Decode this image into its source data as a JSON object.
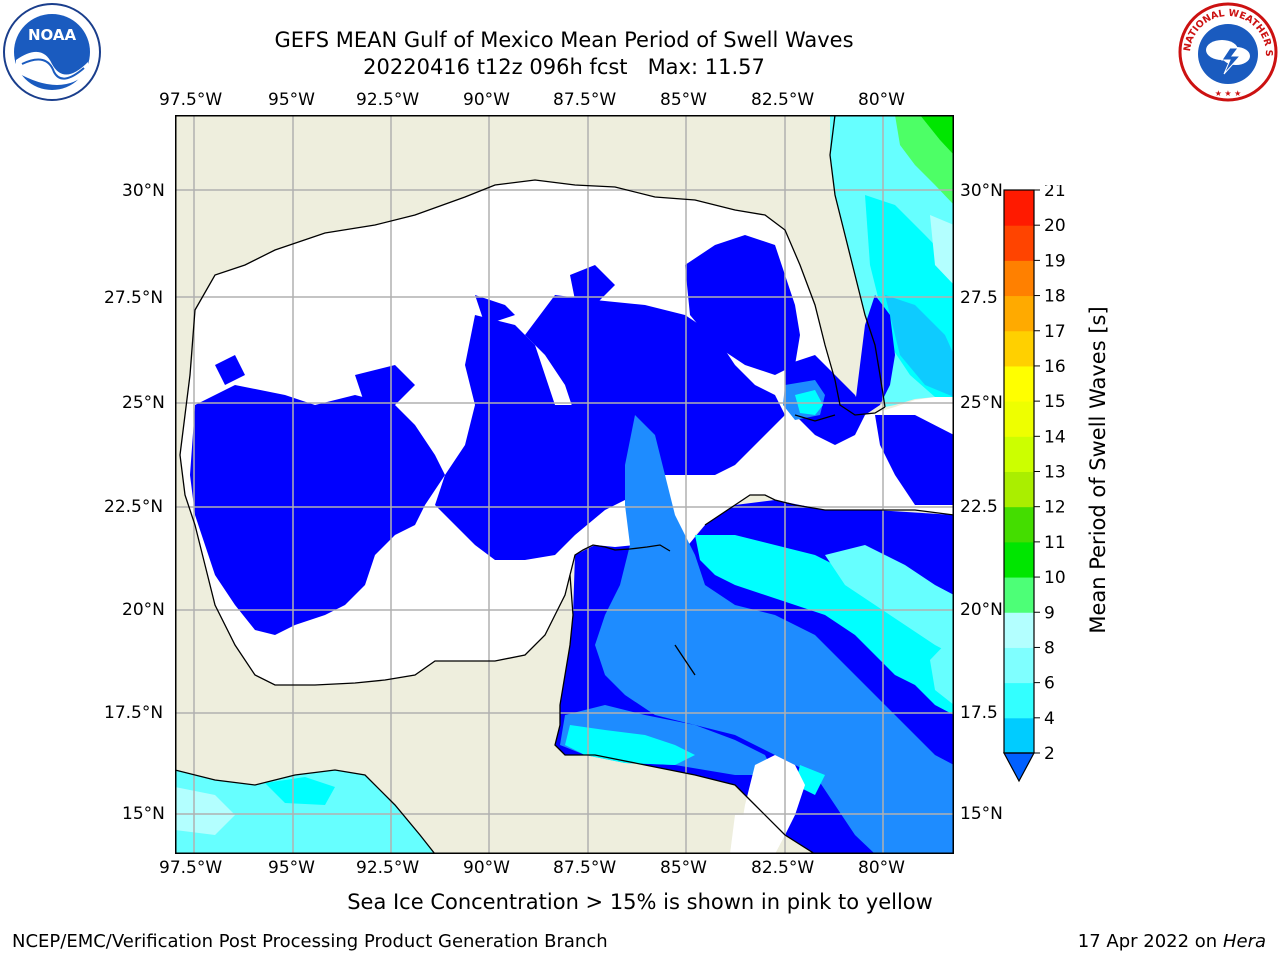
{
  "header": {
    "title_line1": "GEFS MEAN Gulf of Mexico Mean Period of Swell Waves",
    "title_line2": "20220416 t12z 096h fcst   Max: 11.57"
  },
  "logos": {
    "left": {
      "icon": "noaa-logo-icon",
      "text": "NOAA"
    },
    "right": {
      "icon": "national-weather-service-logo-icon",
      "text": "NATIONAL WEATHER SERVICE"
    }
  },
  "map": {
    "lon_labels": [
      "97.5°W",
      "95°W",
      "92.5°W",
      "90°W",
      "87.5°W",
      "85°W",
      "82.5°W",
      "80°W"
    ],
    "lat_labels_left": [
      "30°N",
      "27.5°N",
      "25°N",
      "22.5°N",
      "20°N",
      "17.5°N",
      "15°N"
    ],
    "lat_labels_right": [
      "30°N",
      "27.5",
      "25°N",
      "22.5",
      "20°N",
      "17.5",
      "15°N"
    ],
    "colors": {
      "land": "#eeeedd",
      "no_data": "#ffffff",
      "band_2_4": "#0000ff",
      "band_4_6": "#1e8cff",
      "band_6_8": "#00ffff",
      "band_8_9": "#66ffff",
      "band_9_10": "#b3ffff",
      "band_10_11": "#4dff66",
      "band_11_12": "#00e600",
      "grid": "#b0b0b0",
      "coast": "#000000"
    }
  },
  "colorbar": {
    "label": "Mean Period of Swell Waves [s]",
    "tick_labels": [
      "2",
      "4",
      "6",
      "8",
      "9",
      "10",
      "11",
      "12",
      "13",
      "14",
      "15",
      "16",
      "17",
      "18",
      "19",
      "20",
      "21"
    ],
    "colors": [
      "#0060ff",
      "#00ccff",
      "#33ffff",
      "#7fffff",
      "#b3ffff",
      "#4dff77",
      "#00e600",
      "#44dd00",
      "#aaee00",
      "#ccff00",
      "#eeff00",
      "#ffff00",
      "#ffd000",
      "#ffaa00",
      "#ff8000",
      "#ff4400",
      "#ff1a00",
      "#ff0000"
    ]
  },
  "footer": {
    "note": "Sea Ice Concentration > 15% is shown in pink to yellow",
    "credit": "NCEP/EMC/Verification Post Processing Product Generation Branch",
    "date_prefix": "17 Apr 2022 on ",
    "date_machine": "Hera"
  }
}
